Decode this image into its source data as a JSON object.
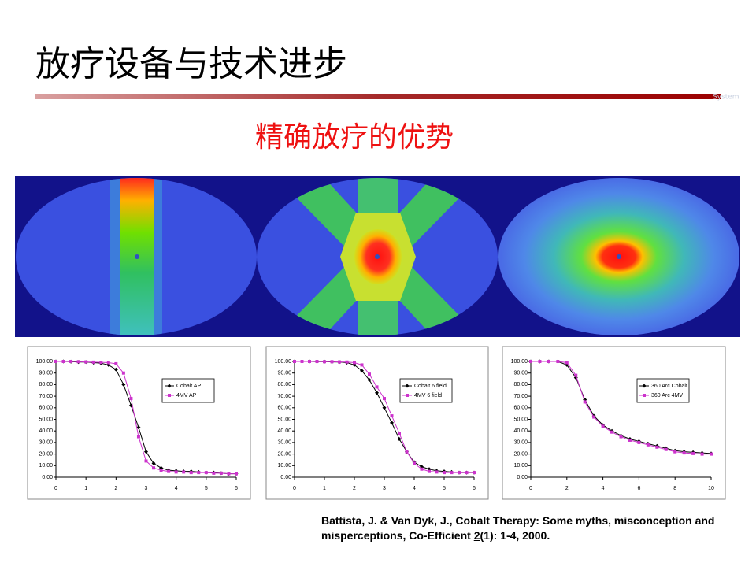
{
  "title": "放疗设备与技术进步",
  "brand_mark": "System",
  "subtitle": "精确放疗的优势",
  "citation": {
    "before": "Battista, J. & Van Dyk, J., Cobalt Therapy: Some myths, misconception and misperceptions, Co-Efficient ",
    "underlined": "2",
    "after": "(1): 1-4, 2000."
  },
  "chart_data": [
    {
      "type": "line",
      "legend": "right",
      "x": [
        0,
        0.25,
        0.5,
        0.75,
        1,
        1.25,
        1.5,
        1.75,
        2,
        2.25,
        2.5,
        2.75,
        3,
        3.25,
        3.5,
        3.75,
        4,
        4.25,
        4.5,
        4.75,
        5,
        5.25,
        5.5,
        5.75,
        6
      ],
      "series": [
        {
          "name": "Cobalt AP",
          "color": "#000000",
          "marker": "diamond",
          "values": [
            100,
            100,
            99.8,
            99.5,
            99.5,
            99,
            98.5,
            97,
            93,
            80,
            62,
            43,
            22,
            12,
            8,
            6,
            5.5,
            5,
            5,
            4.5,
            4,
            4,
            3.5,
            3,
            3
          ]
        },
        {
          "name": "4MV AP",
          "color": "#cc33cc",
          "marker": "square",
          "values": [
            100,
            100,
            100,
            99.8,
            99.6,
            99.4,
            99.2,
            99,
            98,
            90,
            68,
            35,
            14,
            8,
            6,
            5,
            4.5,
            4.5,
            4,
            4,
            4,
            3.5,
            3.5,
            3,
            3
          ]
        }
      ],
      "xlim": [
        0,
        6
      ],
      "xticks": [
        0,
        1,
        2,
        3,
        4,
        5,
        6
      ],
      "ylim": [
        0,
        100
      ],
      "yticks": [
        {
          "value": 0,
          "label": "0.00"
        },
        {
          "value": 10,
          "label": "10.00"
        },
        {
          "value": 20,
          "label": "20.00"
        },
        {
          "value": 30,
          "label": "30.00"
        },
        {
          "value": 40,
          "label": "40.00"
        },
        {
          "value": 50,
          "label": "50.00"
        },
        {
          "value": 60,
          "label": "60.00"
        },
        {
          "value": 70,
          "label": "70.00"
        },
        {
          "value": 80,
          "label": "80.00"
        },
        {
          "value": 90,
          "label": "90.00"
        },
        {
          "value": 100,
          "label": "100.00"
        }
      ]
    },
    {
      "type": "line",
      "legend": "right",
      "x": [
        0,
        0.25,
        0.5,
        0.75,
        1,
        1.25,
        1.5,
        1.75,
        2,
        2.25,
        2.5,
        2.75,
        3,
        3.25,
        3.5,
        3.75,
        4,
        4.25,
        4.5,
        4.75,
        5,
        5.25,
        5.5,
        5.75,
        6
      ],
      "series": [
        {
          "name": "Cobalt 6 field",
          "color": "#000000",
          "marker": "diamond",
          "values": [
            100,
            100,
            100,
            99.8,
            99.8,
            99.6,
            99.5,
            99,
            97,
            92,
            84,
            73,
            60,
            47,
            33,
            22,
            13,
            9,
            7,
            5.5,
            5,
            4.5,
            4,
            4,
            4
          ]
        },
        {
          "name": "4MV 6 field",
          "color": "#cc33cc",
          "marker": "square",
          "values": [
            100,
            100,
            100,
            100,
            99.8,
            99.8,
            99.6,
            99.5,
            99,
            97,
            89,
            78,
            68,
            53,
            38,
            22,
            12,
            7,
            5,
            4.5,
            4,
            4,
            4,
            4,
            4
          ]
        }
      ],
      "xlim": [
        0,
        6
      ],
      "xticks": [
        0,
        1,
        2,
        3,
        4,
        5,
        6
      ],
      "ylim": [
        0,
        100
      ],
      "yticks": [
        {
          "value": 0,
          "label": "0.00"
        },
        {
          "value": 10,
          "label": "10.00"
        },
        {
          "value": 20,
          "label": "20.00"
        },
        {
          "value": 30,
          "label": "30.00"
        },
        {
          "value": 40,
          "label": "40.00"
        },
        {
          "value": 50,
          "label": "50.00"
        },
        {
          "value": 60,
          "label": "60.00"
        },
        {
          "value": 70,
          "label": "70.00"
        },
        {
          "value": 80,
          "label": "80.00"
        },
        {
          "value": 90,
          "label": "90.00"
        },
        {
          "value": 100,
          "label": "100.00"
        }
      ]
    },
    {
      "type": "line",
      "legend": "right",
      "x": [
        0,
        0.5,
        1,
        1.5,
        2,
        2.5,
        3,
        3.5,
        4,
        4.5,
        5,
        5.5,
        6,
        6.5,
        7,
        7.5,
        8,
        8.5,
        9,
        9.5,
        10
      ],
      "series": [
        {
          "name": "360 Arc Cobalt",
          "color": "#000000",
          "marker": "diamond",
          "values": [
            100,
            100,
            100,
            100,
            97,
            86,
            67,
            53,
            45,
            40,
            36,
            33,
            31,
            29,
            27,
            25,
            23,
            22,
            21.5,
            21,
            20.5
          ]
        },
        {
          "name": "360 Arc 4MV",
          "color": "#cc33cc",
          "marker": "square",
          "values": [
            100,
            100,
            100,
            100,
            99,
            88,
            65,
            52,
            44,
            39,
            35,
            32,
            30,
            28,
            26,
            24,
            22,
            21,
            20.5,
            20,
            20
          ]
        }
      ],
      "xlim": [
        0,
        10
      ],
      "xticks": [
        0,
        2,
        4,
        6,
        8,
        10
      ],
      "ylim": [
        0,
        100
      ],
      "yticks": [
        {
          "value": 0,
          "label": "0.00"
        },
        {
          "value": 10,
          "label": "10.00"
        },
        {
          "value": 20,
          "label": "20.00"
        },
        {
          "value": 30,
          "label": "30.00"
        },
        {
          "value": 40,
          "label": "40.00"
        },
        {
          "value": 50,
          "label": "50.00"
        },
        {
          "value": 60,
          "label": "60.00"
        },
        {
          "value": 70,
          "label": "70.00"
        },
        {
          "value": 80,
          "label": "80.00"
        },
        {
          "value": 90,
          "label": "90.00"
        },
        {
          "value": 100,
          "label": "100.00"
        }
      ]
    }
  ]
}
